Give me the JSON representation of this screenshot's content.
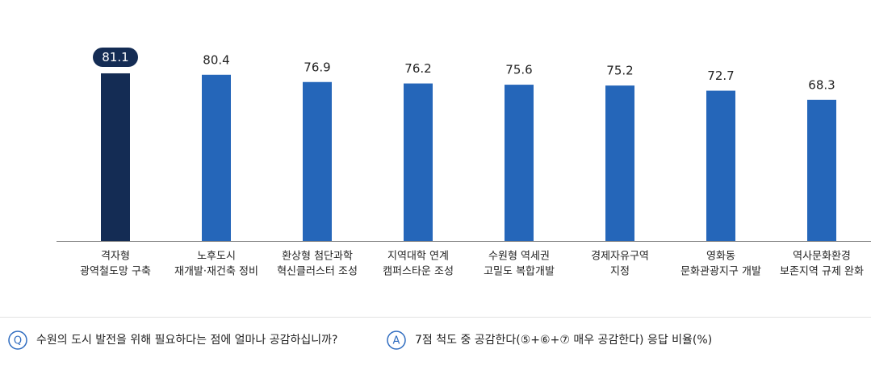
{
  "chart_data": {
    "type": "bar",
    "categories": [
      [
        "격자형",
        "광역철도망 구축"
      ],
      [
        "노후도시",
        "재개발·재건축 정비"
      ],
      [
        "환상형 첨단과학",
        "혁신클러스터 조성"
      ],
      [
        "지역대학 연계",
        "캠퍼스타운 조성"
      ],
      [
        "수원형 역세권",
        "고밀도 복합개발"
      ],
      [
        "경제자유구역",
        "지정"
      ],
      [
        "영화동",
        "문화관광지구 개발"
      ],
      [
        "역사문화환경",
        "보존지역 규제 완화"
      ]
    ],
    "values": [
      81.1,
      80.4,
      76.9,
      76.2,
      75.6,
      75.2,
      72.7,
      68.3
    ],
    "colors": [
      "#142c54",
      "#2566b9",
      "#2566b9",
      "#2566b9",
      "#2566b9",
      "#2566b9",
      "#2566b9",
      "#2566b9"
    ]
  },
  "question": {
    "marker": "Q",
    "text": "수원의 도시 발전을 위해 필요하다는 점에 얼마나 공감하십니까?"
  },
  "answer": {
    "marker": "A",
    "text": "7점 척도 중 공감한다(⑤+⑥+⑦ 매우 공감한다) 응답 비율(%)"
  }
}
